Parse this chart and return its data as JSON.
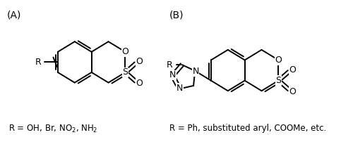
{
  "bg_color": "#ffffff",
  "label_A": "(A)",
  "label_B": "(B)",
  "caption_A": "R = OH, Br, NO$_2$, NH$_2$",
  "caption_B": "R = Ph, substituted aryl, COOMe, etc.",
  "lw": 1.4,
  "figsize": [
    5.0,
    2.02
  ],
  "dpi": 100
}
